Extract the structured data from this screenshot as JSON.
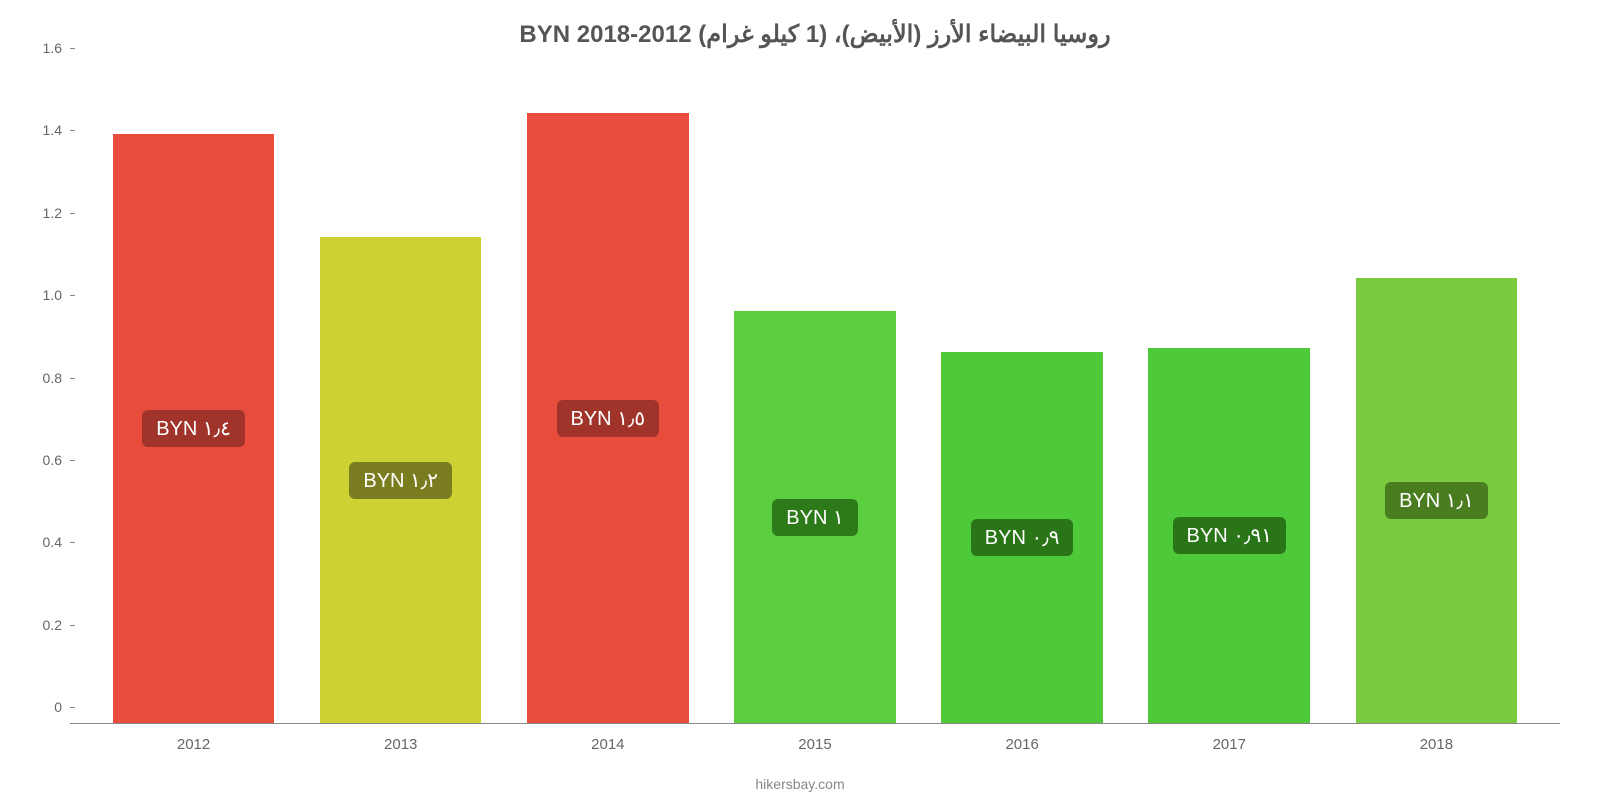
{
  "chart": {
    "type": "bar",
    "title": "روسيا البيضاء الأرز (الأبيض)، (1 كيلو غرام) BYN 2018-2012",
    "title_fontsize": 24,
    "title_color": "#555555",
    "background_color": "#ffffff",
    "ylim": [
      0,
      1.6
    ],
    "ytick_step": 0.2,
    "yticks": [
      {
        "value": 0,
        "label": "0"
      },
      {
        "value": 0.2,
        "label": "0.2"
      },
      {
        "value": 0.4,
        "label": "0.4"
      },
      {
        "value": 0.6,
        "label": "0.6"
      },
      {
        "value": 0.8,
        "label": "0.8"
      },
      {
        "value": 1.0,
        "label": "1.0"
      },
      {
        "value": 1.2,
        "label": "1.2"
      },
      {
        "value": 1.4,
        "label": "1.4"
      },
      {
        "value": 1.6,
        "label": "1.6"
      }
    ],
    "categories": [
      "2012",
      "2013",
      "2014",
      "2015",
      "2016",
      "2017",
      "2018"
    ],
    "axis_label_fontsize": 14,
    "axis_label_color": "#666666",
    "bar_width": 0.78,
    "bars": [
      {
        "year": "2012",
        "value": 1.43,
        "color": "#e74c3c",
        "label": "١٫٤ BYN",
        "label_bg": "#a0342a"
      },
      {
        "year": "2013",
        "value": 1.18,
        "color": "#ced134",
        "label": "١٫٢ BYN",
        "label_bg": "#7a7d1f"
      },
      {
        "year": "2014",
        "value": 1.48,
        "color": "#e74c3c",
        "label": "١٫٥ BYN",
        "label_bg": "#a0342a"
      },
      {
        "year": "2015",
        "value": 1.0,
        "color": "#5bce3f",
        "label": "١ BYN",
        "label_bg": "#2d7a1a"
      },
      {
        "year": "2016",
        "value": 0.9,
        "color": "#4dc93a",
        "label": "٠٫٩ BYN",
        "label_bg": "#2a7518"
      },
      {
        "year": "2017",
        "value": 0.91,
        "color": "#4dc93a",
        "label": "٠٫٩١ BYN",
        "label_bg": "#2a7518"
      },
      {
        "year": "2018",
        "value": 1.08,
        "color": "#7acb3f",
        "label": "١٫١ BYN",
        "label_bg": "#4a7d1f"
      }
    ],
    "bar_label_fontsize": 20,
    "bar_label_color": "#ffffff",
    "attribution": "hikersbay.com",
    "attribution_fontsize": 14,
    "attribution_color": "#888888"
  }
}
